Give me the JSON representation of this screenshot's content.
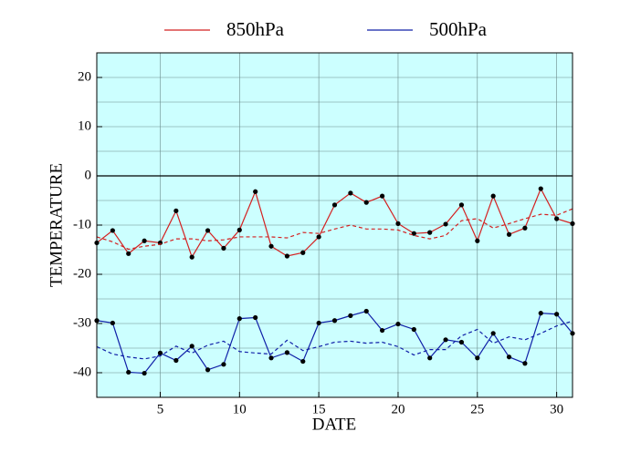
{
  "chart_data": {
    "type": "line",
    "xlabel": "DATE",
    "ylabel": "TEMPERATURE",
    "x": [
      1,
      2,
      3,
      4,
      5,
      6,
      7,
      8,
      9,
      10,
      11,
      12,
      13,
      14,
      15,
      16,
      17,
      18,
      19,
      20,
      21,
      22,
      23,
      24,
      25,
      26,
      27,
      28,
      29,
      30,
      31
    ],
    "series": [
      {
        "name": "850hPa",
        "color": "#d42020",
        "markers": true,
        "values": [
          -13.6,
          -11.1,
          -15.8,
          -13.2,
          -13.6,
          -7.1,
          -16.5,
          -11.1,
          -14.7,
          -11.0,
          -3.2,
          -14.3,
          -16.3,
          -15.6,
          -12.4,
          -5.9,
          -3.5,
          -5.4,
          -4.1,
          -9.7,
          -11.7,
          -11.5,
          -9.8,
          -5.9,
          -13.2,
          -4.1,
          -11.9,
          -10.6,
          -2.6,
          -8.7,
          -9.7
        ]
      },
      {
        "color": "#d42020",
        "dashed": true,
        "values": [
          -12.4,
          -13.4,
          -14.9,
          -14.3,
          -13.9,
          -12.8,
          -12.8,
          -13.2,
          -13.0,
          -12.4,
          -12.4,
          -12.4,
          -12.6,
          -11.5,
          -11.7,
          -10.8,
          -10.0,
          -10.8,
          -10.8,
          -11.0,
          -12.1,
          -12.8,
          -12.1,
          -9.1,
          -8.7,
          -10.6,
          -9.7,
          -8.7,
          -7.8,
          -8.0,
          -6.7
        ]
      },
      {
        "name": "500hPa",
        "color": "#1020a8",
        "markers": true,
        "values": [
          -29.4,
          -29.9,
          -39.9,
          -40.1,
          -36.0,
          -37.5,
          -34.6,
          -39.4,
          -38.3,
          -29.0,
          -28.8,
          -37.0,
          -35.9,
          -37.7,
          -29.9,
          -29.4,
          -28.4,
          -27.5,
          -31.4,
          -30.1,
          -31.2,
          -37.0,
          -33.3,
          -33.8,
          -37.0,
          -32.0,
          -36.8,
          -38.1,
          -27.9,
          -28.1,
          -32.0
        ]
      },
      {
        "color": "#1020a8",
        "dashed": true,
        "values": [
          -34.7,
          -36.2,
          -36.8,
          -37.2,
          -36.6,
          -34.6,
          -36.0,
          -34.4,
          -33.6,
          -35.7,
          -36.0,
          -36.2,
          -33.4,
          -35.5,
          -34.7,
          -33.8,
          -33.6,
          -34.0,
          -33.8,
          -34.7,
          -36.4,
          -35.3,
          -35.3,
          -32.5,
          -31.2,
          -34.0,
          -32.7,
          -33.3,
          -32.0,
          -30.5,
          -29.5
        ]
      }
    ],
    "xlim": [
      1,
      31
    ],
    "xticks": [
      5,
      10,
      15,
      20,
      25,
      30
    ],
    "ylim": [
      -45,
      25
    ],
    "yticks": [
      -40,
      -30,
      -20,
      -10,
      0,
      10,
      20
    ],
    "grid": true,
    "background": "#ccffff"
  }
}
